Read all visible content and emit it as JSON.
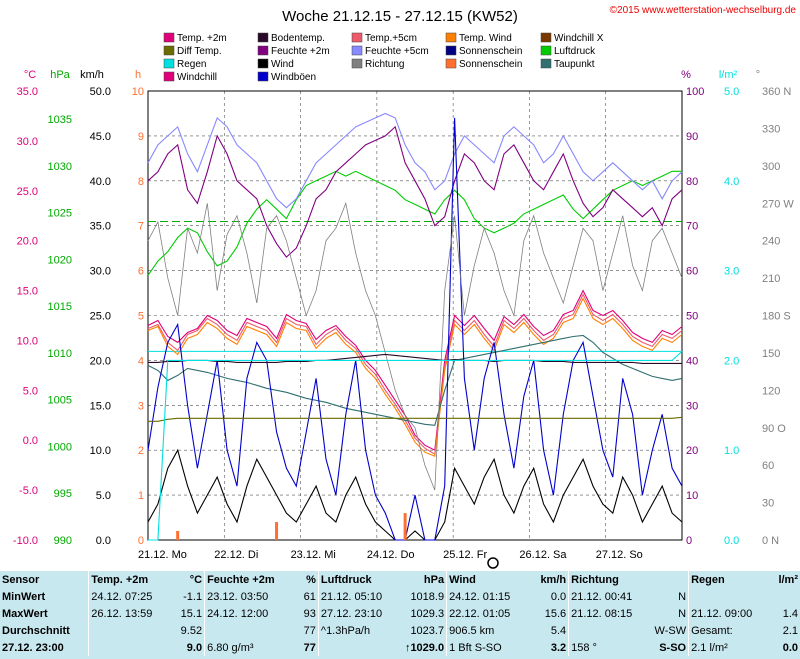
{
  "title": "Woche 21.12.15 - 27.12.15 (KW52)",
  "copyright": "©2015 www.wetterstation-wechselburg.de",
  "legend": [
    {
      "label": "Temp. +2m",
      "color": "#e0007a"
    },
    {
      "label": "Bodentemp.",
      "color": "#2a0a2a"
    },
    {
      "label": "Temp.+5cm",
      "color": "#ee5a6a"
    },
    {
      "label": "Temp. Wind",
      "color": "#ff8000"
    },
    {
      "label": "Windchill X",
      "color": "#7a3800"
    },
    {
      "label": "Diff Temp.",
      "color": "#6b6b00"
    },
    {
      "label": "Feuchte +2m",
      "color": "#800080"
    },
    {
      "label": "Feuchte +5cm",
      "color": "#8888ff"
    },
    {
      "label": "Sonnenschein",
      "color": "#000080"
    },
    {
      "label": "Luftdruck",
      "color": "#00cc00"
    },
    {
      "label": "Regen",
      "color": "#00e0e0"
    },
    {
      "label": "Wind",
      "color": "#000000"
    },
    {
      "label": "Richtung",
      "color": "#808080"
    },
    {
      "label": "Sonnenschein",
      "color": "#ff7030"
    },
    {
      "label": "Taupunkt",
      "color": "#307070"
    },
    {
      "label": "Windchill",
      "color": "#e0007a"
    },
    {
      "label": "Windböen",
      "color": "#0000cc"
    }
  ],
  "chart_data": {
    "type": "line",
    "x_labels": [
      "21.12.  Mo",
      "22.12.  Di",
      "23.12.  Mi",
      "24.12.  Do",
      "25.12.  Fr",
      "26.12.  Sa",
      "27.12.  So"
    ],
    "axes": {
      "temp_c": {
        "label": "°C",
        "ticks": [
          "35.0",
          "30.0",
          "25.0",
          "20.0",
          "15.0",
          "10.0",
          "5.0",
          "0.0",
          "-5.0",
          "-10.0"
        ],
        "color": "#e0007a"
      },
      "pressure_hpa": {
        "label": "hPa",
        "ticks": [
          "1035",
          "1030",
          "1025",
          "1020",
          "1015",
          "1010",
          "1005",
          "1000",
          "995",
          "990"
        ],
        "color": "#00aa00"
      },
      "wind_kmh": {
        "label": "km/h",
        "ticks": [
          "50.0",
          "45.0",
          "40.0",
          "35.0",
          "30.0",
          "25.0",
          "20.0",
          "15.0",
          "10.0",
          "5.0",
          "0.0"
        ],
        "color": "#000000"
      },
      "sun_h": {
        "label": "h",
        "ticks": [
          "10",
          "9",
          "8",
          "7",
          "6",
          "5",
          "4",
          "3",
          "2",
          "1",
          "0"
        ],
        "color": "#ff7030"
      },
      "humidity_pct": {
        "label": "%",
        "ticks": [
          "100",
          "90",
          "80",
          "70",
          "60",
          "50",
          "40",
          "30",
          "20",
          "10",
          "0"
        ],
        "color": "#800080"
      },
      "rain_lm2": {
        "label": "l/m²",
        "ticks": [
          "5.0",
          "4.0",
          "3.0",
          "2.0",
          "1.0",
          "0.0"
        ],
        "color": "#00e0e0"
      },
      "direction": {
        "label": "°",
        "ticks": [
          "360 N",
          "330",
          "300",
          "270 W",
          "240",
          "210",
          "180 S",
          "150",
          "120",
          "90 O",
          "60",
          "30",
          "0 N"
        ],
        "color": "#808080"
      }
    },
    "series": [
      {
        "name": "Temp. +2m",
        "color": "#e0007a",
        "values": [
          11.5,
          12.0,
          10.4,
          9.8,
          10.8,
          11.2,
          12.5,
          12.0,
          11.0,
          10.5,
          12.2,
          11.8,
          11.4,
          10.2,
          12.6,
          12.0,
          11.7,
          10.1,
          11.0,
          11.5,
          10.4,
          9.5,
          8.0,
          7.0,
          5.5,
          4.0,
          2.5,
          0.5,
          -0.5,
          -1.0,
          8.0,
          12.5,
          11.5,
          12.5,
          11.2,
          10.0,
          12.4,
          11.6,
          12.6,
          11.4,
          10.5,
          11.0,
          12.6,
          13.0,
          15.0,
          13.0,
          12.5,
          13.0,
          12.0,
          10.8,
          10.2,
          9.8,
          11.0,
          10.6,
          11.4
        ]
      },
      {
        "name": "Temp.+5cm",
        "color": "#ee5a6a",
        "values": [
          11.2,
          11.6,
          9.8,
          9.0,
          10.6,
          11.0,
          12.2,
          11.6,
          10.6,
          10.0,
          11.8,
          11.4,
          11.0,
          9.8,
          12.2,
          11.6,
          11.4,
          9.6,
          10.6,
          11.2,
          10.0,
          9.2,
          7.6,
          6.6,
          5.0,
          3.6,
          2.0,
          0.2,
          -0.8,
          -1.4,
          7.4,
          12.0,
          11.0,
          12.0,
          10.6,
          9.4,
          12.0,
          11.2,
          12.2,
          11.0,
          10.0,
          10.6,
          12.2,
          12.6,
          14.6,
          12.6,
          12.0,
          12.6,
          11.6,
          10.4,
          9.8,
          9.4,
          10.6,
          10.2,
          11.0
        ]
      },
      {
        "name": "Temp. Wind",
        "color": "#ff8000",
        "values": [
          11.0,
          11.4,
          9.4,
          8.6,
          10.2,
          10.6,
          11.8,
          11.2,
          10.2,
          9.6,
          11.4,
          11.0,
          10.6,
          9.4,
          11.8,
          11.2,
          11.0,
          9.2,
          10.2,
          10.8,
          9.6,
          8.8,
          7.2,
          6.2,
          4.6,
          3.2,
          1.6,
          -0.2,
          -1.2,
          -1.6,
          7.0,
          11.6,
          10.6,
          11.6,
          10.2,
          9.0,
          11.6,
          10.8,
          11.8,
          10.6,
          9.6,
          10.2,
          11.8,
          12.2,
          14.2,
          12.2,
          11.6,
          12.2,
          11.2,
          10.0,
          9.4,
          9.0,
          10.2,
          9.8,
          10.6
        ]
      },
      {
        "name": "Luftdruck",
        "color": "#00cc00",
        "values": [
          1018.0,
          1019.5,
          1020.5,
          1022.0,
          1023.0,
          1022.5,
          1020.5,
          1019.0,
          1019.5,
          1021.0,
          1023.5,
          1025.0,
          1026.0,
          1025.0,
          1024.0,
          1026.0,
          1027.5,
          1028.0,
          1028.5,
          1029.0,
          1028.5,
          1029.0,
          1028.5,
          1028.0,
          1027.5,
          1027.0,
          1026.0,
          1025.5,
          1025.0,
          1024.5,
          1026.0,
          1027.0,
          1026.0,
          1024.0,
          1023.0,
          1022.5,
          1023.0,
          1023.5,
          1024.5,
          1025.0,
          1025.5,
          1026.0,
          1026.5,
          1025.0,
          1024.0,
          1025.0,
          1026.0,
          1027.0,
          1027.5,
          1028.0,
          1027.5,
          1028.0,
          1028.5,
          1029.0,
          1029.0
        ]
      },
      {
        "name": "Feuchte +2m",
        "color": "#800080",
        "values": [
          80,
          82,
          86,
          88,
          78,
          75,
          82,
          90,
          86,
          80,
          78,
          76,
          70,
          66,
          63,
          65,
          70,
          76,
          78,
          82,
          84,
          86,
          88,
          89,
          90,
          92,
          84,
          80,
          76,
          70,
          72,
          80,
          86,
          84,
          80,
          78,
          86,
          88,
          84,
          80,
          78,
          82,
          86,
          80,
          75,
          72,
          74,
          78,
          76,
          74,
          72,
          74,
          70,
          76,
          78
        ]
      },
      {
        "name": "Feuchte +5cm",
        "color": "#8888ff",
        "values": [
          84,
          88,
          90,
          92,
          86,
          82,
          88,
          94,
          92,
          88,
          86,
          84,
          80,
          76,
          74,
          76,
          80,
          84,
          86,
          88,
          90,
          92,
          93,
          94,
          95,
          94,
          88,
          84,
          82,
          78,
          80,
          86,
          90,
          88,
          86,
          84,
          90,
          92,
          90,
          88,
          84,
          86,
          90,
          86,
          82,
          80,
          82,
          84,
          82,
          80,
          78,
          80,
          76,
          80,
          82
        ]
      },
      {
        "name": "Taupunkt",
        "color": "#307070",
        "values": [
          7.5,
          7.0,
          6.0,
          6.5,
          7.2,
          7.0,
          6.8,
          6.5,
          6.2,
          6.0,
          5.8,
          5.5,
          5.2,
          5.0,
          4.8,
          4.5,
          4.2,
          4.0,
          3.8,
          3.5,
          3.2,
          3.0,
          2.8,
          2.6,
          2.4,
          2.2,
          2.0,
          1.8,
          1.6,
          1.5,
          5.0,
          8.0,
          8.2,
          8.4,
          8.6,
          8.8,
          9.0,
          9.2,
          9.4,
          9.6,
          9.8,
          10.0,
          10.2,
          10.4,
          10.5,
          9.8,
          8.8,
          8.2,
          7.6,
          7.2,
          6.8,
          6.4,
          6.2,
          6.0,
          6.2
        ]
      },
      {
        "name": "Wind",
        "color": "#000000",
        "values": [
          2,
          4,
          8,
          10,
          6,
          3,
          5,
          7,
          4,
          2,
          6,
          9,
          7,
          5,
          3,
          2,
          4,
          6,
          3,
          2,
          5,
          7,
          4,
          2,
          1,
          0,
          0,
          1,
          0,
          0,
          2,
          8,
          6,
          4,
          7,
          9,
          5,
          3,
          6,
          8,
          4,
          2,
          5,
          7,
          9,
          6,
          4,
          3,
          7,
          5,
          2,
          4,
          6,
          3,
          2
        ]
      },
      {
        "name": "Windböen",
        "color": "#0000cc",
        "values": [
          10,
          17,
          22,
          24,
          15,
          8,
          14,
          20,
          10,
          6,
          18,
          22,
          20,
          12,
          8,
          6,
          12,
          18,
          9,
          5,
          14,
          20,
          10,
          5,
          3,
          0,
          0,
          5,
          0,
          0,
          6,
          47,
          18,
          10,
          18,
          22,
          14,
          8,
          16,
          20,
          10,
          5,
          14,
          20,
          22,
          16,
          10,
          7,
          18,
          14,
          5,
          10,
          14,
          8,
          6
        ]
      },
      {
        "name": "Richtung",
        "color": "#808080",
        "values": [
          240,
          255,
          210,
          180,
          250,
          230,
          270,
          200,
          245,
          260,
          230,
          190,
          250,
          260,
          240,
          210,
          180,
          200,
          240,
          250,
          270,
          230,
          200,
          180,
          150,
          120,
          100,
          90,
          60,
          40,
          200,
          260,
          180,
          220,
          250,
          230,
          200,
          180,
          240,
          260,
          230,
          210,
          190,
          220,
          250,
          240,
          200,
          230,
          260,
          220,
          200,
          240,
          250,
          230,
          210
        ]
      },
      {
        "name": "Bodentemp.",
        "color": "#2a0a2a",
        "values": [
          7.8,
          7.8,
          7.9,
          7.9,
          8.0,
          8.0,
          8.0,
          7.9,
          7.9,
          7.8,
          7.8,
          7.8,
          7.8,
          7.8,
          7.9,
          7.9,
          7.9,
          8.0,
          8.0,
          8.1,
          8.2,
          8.3,
          8.4,
          8.5,
          8.6,
          8.5,
          8.4,
          8.3,
          8.2,
          8.1,
          8.0,
          8.1,
          8.0,
          8.0,
          8.0,
          7.9,
          8.0,
          8.0,
          8.0,
          8.0,
          7.9,
          7.9,
          7.9,
          7.8,
          7.8,
          7.8,
          7.8,
          7.8,
          7.8,
          7.8,
          7.7,
          7.7,
          7.7,
          7.7,
          7.7
        ]
      },
      {
        "name": "Diff Temp.",
        "color": "#6b6b00",
        "values": [
          1.9,
          1.9,
          2.1,
          2.2,
          2.2,
          2.2,
          2.2,
          2.2,
          2.2,
          2.2,
          2.2,
          2.2,
          2.2,
          2.2,
          2.2,
          2.2,
          2.2,
          2.2,
          2.2,
          2.2,
          2.2,
          2.2,
          2.2,
          2.2,
          2.2,
          2.2,
          2.2,
          2.2,
          2.2,
          2.2,
          2.2,
          2.2,
          2.2,
          2.2,
          2.2,
          2.2,
          2.2,
          2.2,
          2.2,
          2.2,
          2.2,
          2.2,
          2.2,
          2.2,
          2.2,
          2.2,
          2.2,
          2.2,
          2.2,
          2.2,
          2.2,
          2.2,
          2.2,
          2.2,
          2.3
        ]
      },
      {
        "name": "Regen",
        "color": "#00e0e0",
        "values": [
          0,
          0,
          2.0,
          2.0,
          2.0,
          2.0,
          2.0,
          2.0,
          2.0,
          2.0,
          2.0,
          2.0,
          2.0,
          2.0,
          2.0,
          2.0,
          2.0,
          2.0,
          2.0,
          2.0,
          2.0,
          2.0,
          2.0,
          2.0,
          2.0,
          2.0,
          2.0,
          2.0,
          2.0,
          2.0,
          2.0,
          2.0,
          2.0,
          2.0,
          2.0,
          2.0,
          2.0,
          2.0,
          2.0,
          2.0,
          2.0,
          2.0,
          2.0,
          2.0,
          2.0,
          2.0,
          2.0,
          2.0,
          2.0,
          2.0,
          2.0,
          2.0,
          2.0,
          2.0,
          2.1
        ]
      },
      {
        "name": "Sonnenschein",
        "color": "#ff7030",
        "values": [
          0,
          0,
          0,
          0.2,
          0,
          0,
          0,
          0,
          0,
          0,
          0,
          0,
          0,
          0.4,
          0,
          0,
          0,
          0,
          0,
          0,
          0,
          0,
          0,
          0,
          0,
          0,
          0.6,
          0,
          0,
          0,
          0,
          0,
          0,
          0,
          0,
          0,
          0,
          0,
          0,
          0,
          0,
          0,
          0,
          0,
          0,
          0,
          0,
          0,
          0,
          0,
          0,
          0,
          0,
          0,
          0
        ]
      }
    ],
    "reference_lines": [
      {
        "name": "Luftdruck Mittel",
        "value_hpa": 1023.7,
        "color": "#00aa00"
      },
      {
        "name": "Regen Summe",
        "value_lm2": 2.1,
        "color": "#00e0e0"
      }
    ]
  },
  "table": {
    "headers": {
      "sensor": "Sensor",
      "temp": "Temp. +2m",
      "temp_unit": "°C",
      "hum": "Feuchte +2m",
      "hum_unit": "%",
      "press": "Luftdruck",
      "press_unit": "hPa",
      "wind": "Wind",
      "wind_unit": "km/h",
      "dir": "Richtung",
      "rain": "Regen",
      "rain_unit": "l/m²"
    },
    "rows": [
      {
        "label": "MinWert",
        "temp_time": "24.12.  07:25",
        "temp_val": "-1.1",
        "hum_time": "23.12.  03:50",
        "hum_val": "61",
        "press_time": "21.12.  05:10",
        "press_val": "1018.9",
        "wind_time": "24.12.  01:15",
        "wind_val": "0.0",
        "dir_time": "21.12.  00:41",
        "dir_val": "N",
        "rain_time": "",
        "rain_val": ""
      },
      {
        "label": "MaxWert",
        "temp_time": "26.12.  13:59",
        "temp_val": "15.1",
        "hum_time": "24.12.  12:00",
        "hum_val": "93",
        "press_time": "27.12.  23:10",
        "press_val": "1029.3",
        "wind_time": "22.12.  01:05",
        "wind_val": "15.6",
        "dir_time": "21.12.  08:15",
        "dir_val": "N",
        "rain_time": "21.12.  09:00",
        "rain_val": "1.4"
      },
      {
        "label": "Durchschnitt",
        "temp_time": "",
        "temp_val": "9.52",
        "hum_time": "",
        "hum_val": "77",
        "press_time": "^1.3hPa/h",
        "press_val": "1023.7",
        "wind_time": "906.5 km",
        "wind_val": "5.4",
        "dir_time": "",
        "dir_val": "W-SW",
        "rain_time": "Gesamt:",
        "rain_val": "2.1"
      },
      {
        "label": "27.12.  23:00",
        "temp_time": "",
        "temp_val": "9.0",
        "hum_time": "6.80 g/m³",
        "hum_val": "77",
        "press_time": "",
        "press_val": "↑1029.0",
        "wind_time": "1 Bft S-SO",
        "wind_val": "3.2",
        "dir_time": "158 °",
        "dir_val": "S-SO",
        "rain_time": "2.1 l/m²",
        "rain_val": "0.0"
      }
    ]
  }
}
